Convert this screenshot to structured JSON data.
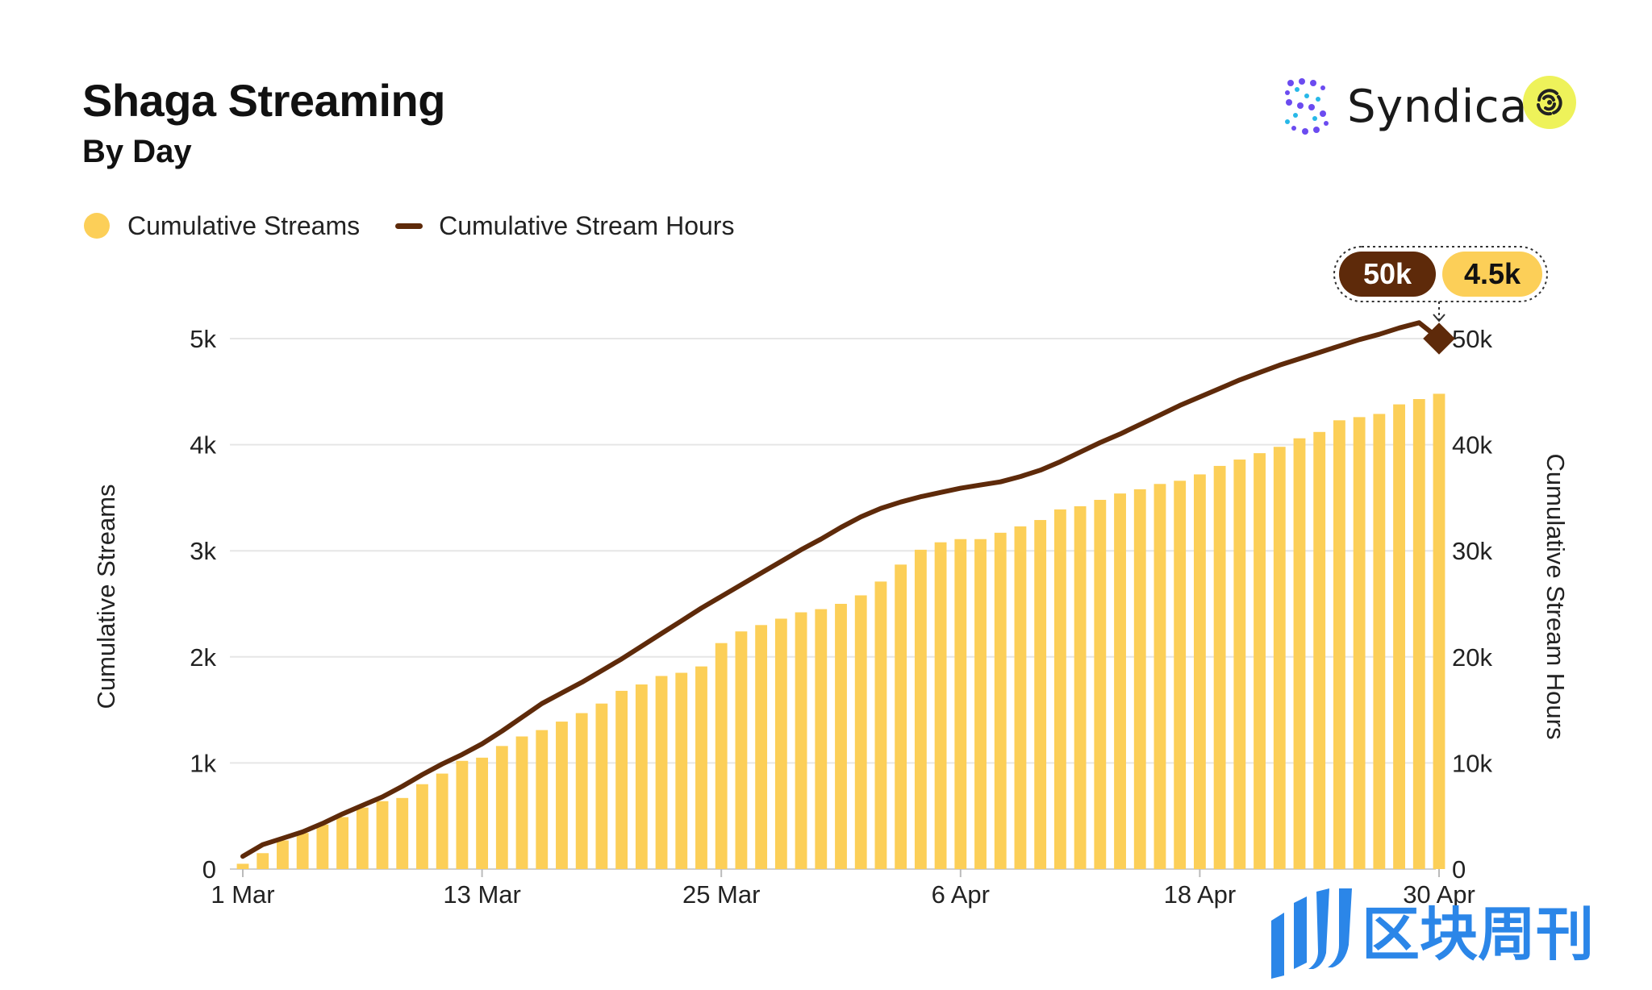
{
  "header": {
    "title": "Shaga Streaming",
    "subtitle": "By Day"
  },
  "brand": {
    "name": "Syndica",
    "logo_icon": "syndica-s-icon",
    "partner_icon": "shaga-logo-icon"
  },
  "legend": {
    "streams_label": "Cumulative Streams",
    "hours_label": "Cumulative Stream Hours"
  },
  "tooltip": {
    "hours_value": "50k",
    "streams_value": "4.5k"
  },
  "watermark": {
    "text": "区块周刊",
    "icon": "block-weekly-logo-icon"
  },
  "colors": {
    "bars": "#FCCF58",
    "line": "#5E2A0A",
    "partner_logo_bg": "#EEF25A",
    "grid": "#E6E6E6",
    "watermark": "#2B86E8"
  },
  "chart_data": {
    "type": "bar+line",
    "title": "Shaga Streaming",
    "subtitle": "By Day",
    "ylabel_left": "Cumulative Streams",
    "ylabel_right": "Cumulative Stream Hours",
    "ylim_left": [
      0,
      5000
    ],
    "ylim_right": [
      0,
      50000
    ],
    "yticks_left": [
      "0",
      "1k",
      "2k",
      "3k",
      "4k",
      "5k"
    ],
    "yticks_right": [
      "0",
      "10k",
      "20k",
      "30k",
      "40k",
      "50k"
    ],
    "xtick_labels": [
      "1 Mar",
      "13 Mar",
      "25 Mar",
      "6 Apr",
      "18 Apr",
      "30 Apr"
    ],
    "xtick_index": [
      0,
      12,
      24,
      36,
      48,
      60
    ],
    "grid": true,
    "legend_position": "top-left",
    "x_start": "1 Mar",
    "x_end": "30 Apr",
    "series": [
      {
        "name": "Cumulative Streams",
        "type": "bar",
        "axis": "left",
        "values": [
          50,
          150,
          270,
          340,
          420,
          490,
          580,
          640,
          670,
          800,
          900,
          1020,
          1050,
          1160,
          1250,
          1310,
          1390,
          1470,
          1560,
          1680,
          1740,
          1820,
          1850,
          1910,
          2130,
          2240,
          2300,
          2360,
          2420,
          2450,
          2500,
          2580,
          2710,
          2870,
          3010,
          3080,
          3110,
          3110,
          3170,
          3230,
          3290,
          3390,
          3420,
          3480,
          3540,
          3580,
          3630,
          3660,
          3720,
          3800,
          3860,
          3920,
          3980,
          4060,
          4120,
          4230,
          4260,
          4290,
          4380,
          4430,
          4480
        ]
      },
      {
        "name": "Cumulative Stream Hours",
        "type": "line",
        "axis": "right",
        "values": [
          1200,
          2300,
          2900,
          3500,
          4300,
          5200,
          6000,
          6800,
          7800,
          8900,
          9900,
          10800,
          11800,
          13000,
          14300,
          15600,
          16600,
          17600,
          18700,
          19800,
          21000,
          22200,
          23400,
          24600,
          25700,
          26800,
          27900,
          29000,
          30100,
          31100,
          32200,
          33200,
          34000,
          34600,
          35100,
          35500,
          35900,
          36200,
          36500,
          37000,
          37600,
          38400,
          39300,
          40200,
          41000,
          41900,
          42800,
          43700,
          44500,
          45300,
          46100,
          46800,
          47500,
          48100,
          48700,
          49300,
          49900,
          50400,
          51000,
          51500,
          50000
        ]
      }
    ]
  }
}
